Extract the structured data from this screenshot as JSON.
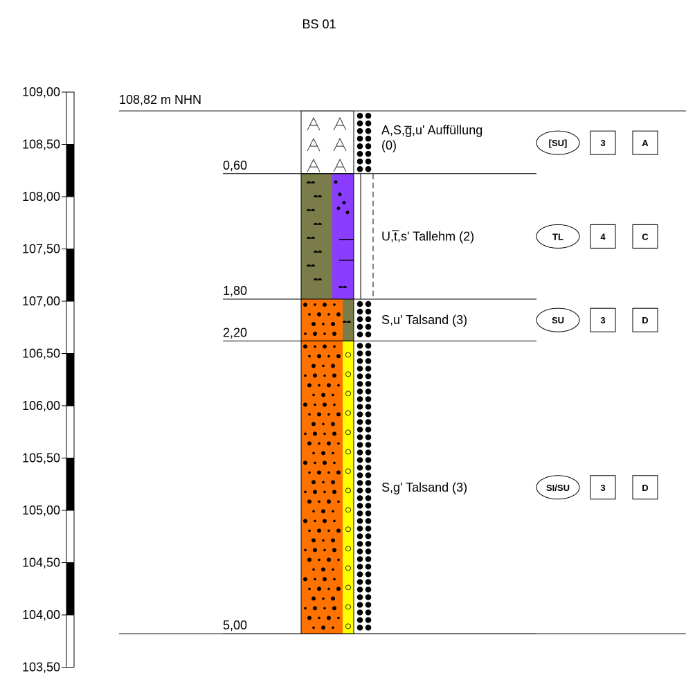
{
  "title": "BS 01",
  "top_elevation_label": "108,82 m NHN",
  "scale": {
    "ticks": [
      "109,00",
      "108,50",
      "108,00",
      "107,50",
      "107,00",
      "106,50",
      "106,00",
      "105,50",
      "105,00",
      "104,50",
      "104,00",
      "103,50"
    ],
    "top_value": 109.0,
    "bottom_value": 103.5,
    "step": 0.5
  },
  "surface_elevation": 108.82,
  "layers": [
    {
      "top_depth": 0.0,
      "bottom_depth": 0.6,
      "depth_label": "0,60",
      "description_main": "A,S,g̅,u' Auffüllung",
      "description_extra": "(0)",
      "soil_group": "[SU]",
      "class_number": "3",
      "class_letter": "A",
      "pattern": "fill",
      "colors": {
        "primary": "#ffffff",
        "secondary": "#ffffff"
      },
      "consistency": "dots"
    },
    {
      "top_depth": 0.6,
      "bottom_depth": 1.8,
      "depth_label": "1,80",
      "description_main": "U,t̅,s' Tallehm (2)",
      "description_extra": "",
      "soil_group": "TL",
      "class_number": "4",
      "class_letter": "C",
      "pattern": "silt",
      "colors": {
        "primary": "#7a7c4a",
        "secondary": "#8a3dff"
      },
      "consistency": "lines"
    },
    {
      "top_depth": 1.8,
      "bottom_depth": 2.2,
      "depth_label": "2,20",
      "description_main": "S,u' Talsand (3)",
      "description_extra": "",
      "soil_group": "SU",
      "class_number": "3",
      "class_letter": "D",
      "pattern": "sand",
      "colors": {
        "primary": "#ff7200",
        "secondary": "#7a7c4a"
      },
      "consistency": "dots"
    },
    {
      "top_depth": 2.2,
      "bottom_depth": 5.0,
      "depth_label": "5,00",
      "description_main": "S,g' Talsand (3)",
      "description_extra": "",
      "soil_group": "SI/SU",
      "class_number": "3",
      "class_letter": "D",
      "pattern": "sand",
      "colors": {
        "primary": "#ff7200",
        "secondary": "#ffff00"
      },
      "consistency": "dots"
    }
  ]
}
